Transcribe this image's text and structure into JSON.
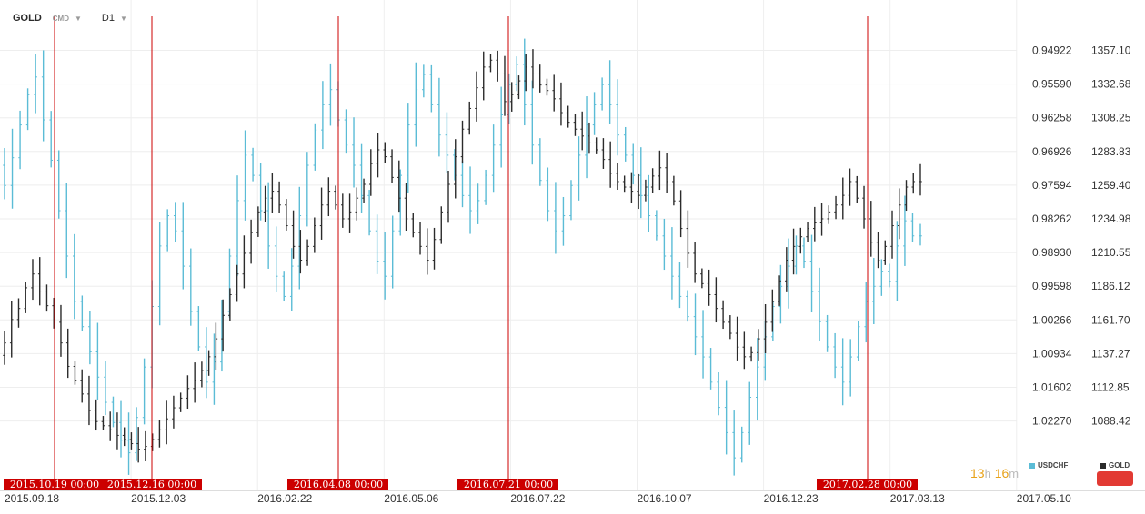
{
  "header": {
    "symbol": "GOLD",
    "category": "CMD",
    "timeframe": "D1"
  },
  "timer": {
    "hours": "13",
    "hours_unit": "h",
    "minutes": "16",
    "minutes_unit": "m"
  },
  "colors": {
    "gold": "#2b2b2b",
    "usdchf": "#5bbcd6",
    "marker": "#cc0000",
    "grid": "#eeeeee",
    "timer": "#e8a21a"
  },
  "chart_data": {
    "type": "ohlc",
    "legend": [
      {
        "name": "USDCHF",
        "color": "#5bbcd6"
      },
      {
        "name": "GOLD",
        "color": "#2b2b2b"
      }
    ],
    "x_ticks": [
      "2015.09.18",
      "2015.12.03",
      "2016.02.22",
      "2016.05.06",
      "2016.07.22",
      "2016.10.07",
      "2016.12.23",
      "2017.03.13",
      "2017.05.10"
    ],
    "y_left_ticks": [
      "0.94922",
      "0.95590",
      "0.96258",
      "0.96926",
      "0.97594",
      "0.98262",
      "0.98930",
      "0.99598",
      "1.00266",
      "1.00934",
      "1.01602",
      "1.02270"
    ],
    "y_right_ticks": [
      "1357.10",
      "1332.68",
      "1308.25",
      "1283.83",
      "1259.40",
      "1234.98",
      "1210.55",
      "1186.12",
      "1161.70",
      "1137.27",
      "1112.85",
      "1088.42"
    ],
    "y_left_inverted": true,
    "markers": [
      "2015.10.19 00:00",
      "2015.12.16 00:00",
      "2016.04.08 00:00",
      "2016.07.21 00:00",
      "2017.02.28 00:00"
    ],
    "series": [
      {
        "name": "GOLD",
        "axis": "right",
        "values": [
          1136,
          1145,
          1162,
          1170,
          1185,
          1195,
          1182,
          1172,
          1160,
          1145,
          1128,
          1118,
          1108,
          1096,
          1088,
          1085,
          1082,
          1078,
          1075,
          1072,
          1068,
          1070,
          1075,
          1082,
          1090,
          1098,
          1105,
          1112,
          1118,
          1125,
          1135,
          1148,
          1165,
          1180,
          1195,
          1210,
          1225,
          1240,
          1250,
          1255,
          1245,
          1230,
          1215,
          1205,
          1215,
          1230,
          1245,
          1255,
          1245,
          1235,
          1240,
          1250,
          1260,
          1275,
          1285,
          1280,
          1265,
          1250,
          1235,
          1225,
          1215,
          1205,
          1220,
          1240,
          1260,
          1280,
          1300,
          1315,
          1330,
          1345,
          1350,
          1340,
          1320,
          1325,
          1335,
          1345,
          1340,
          1332,
          1328,
          1322,
          1312,
          1305,
          1300,
          1295,
          1290,
          1285,
          1278,
          1268,
          1262,
          1258,
          1255,
          1252,
          1258,
          1266,
          1272,
          1262,
          1248,
          1228,
          1210,
          1195,
          1188,
          1180,
          1170,
          1160,
          1152,
          1142,
          1135,
          1138,
          1148,
          1160,
          1175,
          1190,
          1205,
          1215,
          1222,
          1228,
          1232,
          1235,
          1240,
          1245,
          1252,
          1262,
          1250,
          1235,
          1218,
          1205,
          1215,
          1230,
          1245,
          1258,
          1262
        ]
      },
      {
        "name": "USDCHF",
        "axis": "left",
        "values": [
          0.972,
          0.976,
          0.9705,
          0.964,
          0.958,
          0.9545,
          0.963,
          0.971,
          0.981,
          0.99,
          0.999,
          1.004,
          1.009,
          1.014,
          1.019,
          1.023,
          1.0265,
          1.029,
          1.022,
          1.012,
          1.0,
          0.988,
          0.982,
          0.985,
          0.992,
          1.001,
          1.008,
          1.015,
          1.011,
          1.001,
          0.99,
          0.979,
          0.97,
          0.974,
          0.981,
          0.988,
          0.994,
          0.998,
          0.992,
          0.982,
          0.972,
          0.965,
          0.96,
          0.957,
          0.963,
          0.968,
          0.972,
          0.978,
          0.985,
          0.991,
          0.994,
          0.985,
          0.974,
          0.964,
          0.957,
          0.954,
          0.96,
          0.966,
          0.97,
          0.974,
          0.978,
          0.981,
          0.979,
          0.974,
          0.968,
          0.962,
          0.956,
          0.952,
          0.96,
          0.968,
          0.975,
          0.981,
          0.985,
          0.982,
          0.976,
          0.97,
          0.964,
          0.96,
          0.956,
          0.96,
          0.966,
          0.97,
          0.974,
          0.978,
          0.982,
          0.986,
          0.99,
          0.994,
          0.998,
          1.002,
          1.006,
          1.01,
          1.015,
          1.02,
          1.025,
          1.03,
          1.025,
          1.018,
          1.012,
          1.006,
          1.0,
          0.996,
          0.992,
          0.988,
          0.991,
          0.997,
          1.003,
          1.008,
          1.012,
          1.015,
          1.01,
          1.004,
          0.999,
          0.996,
          0.993,
          0.995,
          0.988,
          0.983,
          0.986
        ]
      }
    ]
  }
}
